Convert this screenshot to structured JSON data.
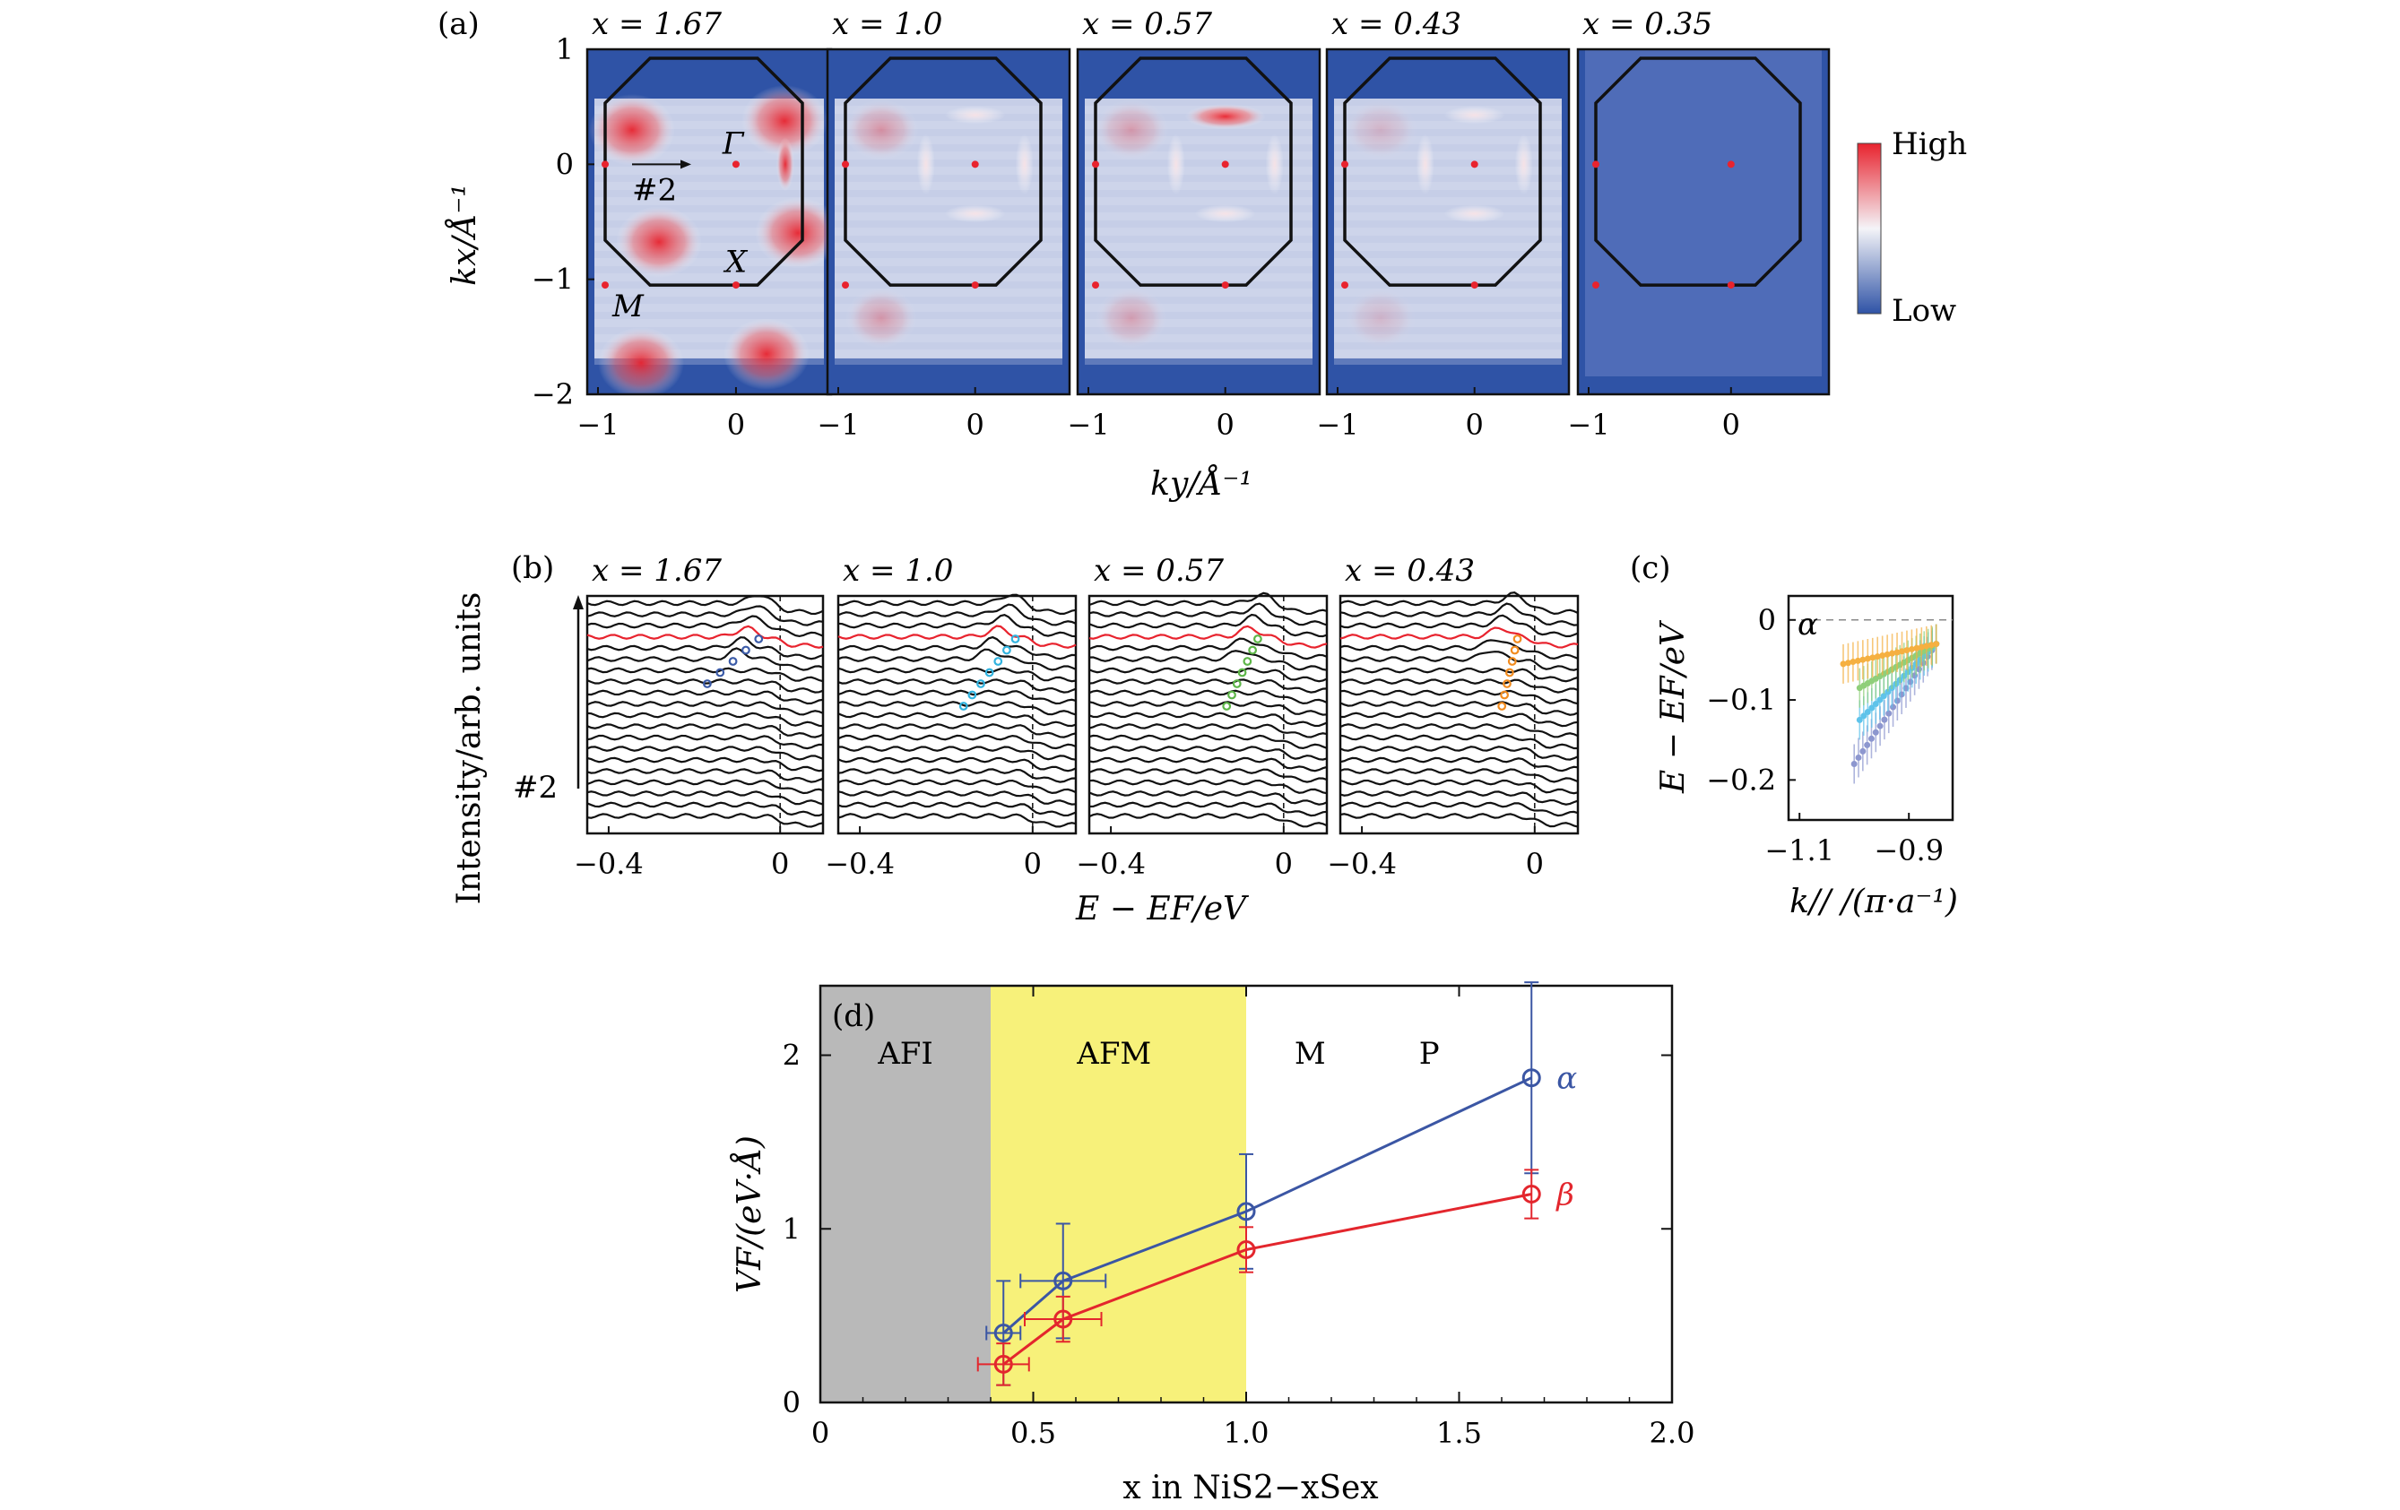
{
  "figure": {
    "panel_a_label": "(a)",
    "panel_b_label": "(b)",
    "panel_c_label": "(c)",
    "panel_d_label": "(d)"
  },
  "panel_a": {
    "map_titles": [
      "x = 1.67",
      "x = 1.0",
      "x = 0.57",
      "x = 0.43",
      "x = 0.35"
    ],
    "y_axis_label": "kx/Å⁻¹",
    "x_axis_label": "ky/Å⁻¹",
    "y_ticks": [
      "1",
      "0",
      "−1",
      "−2"
    ],
    "x_ticks": [
      "−1",
      "0"
    ],
    "point_labels": {
      "gamma": "Γ",
      "x": "X",
      "m": "M",
      "cut": "#2"
    },
    "colorbar": {
      "high": "High",
      "low": "Low",
      "high_color": "#e8232e",
      "low_color": "#2f53a6"
    }
  },
  "panel_b": {
    "titles": [
      "x = 1.67",
      "x = 1.0",
      "x = 0.57",
      "x = 0.43"
    ],
    "y_axis_label": "Intensity/arb. units",
    "x_axis_label": "E − EF/eV",
    "x_ticks": [
      "−0.4",
      "0"
    ],
    "cut_label": "#2",
    "marker_colors": [
      "#3b5ba8",
      "#31b3df",
      "#5db648",
      "#f28c1f"
    ]
  },
  "panel_c": {
    "y_axis_label": "E − EF/eV",
    "x_axis_label": "k// /(π·a⁻¹)",
    "y_ticks": [
      "0",
      "−0.1",
      "−0.2"
    ],
    "x_ticks": [
      "−1.1",
      "−0.9"
    ],
    "band_label": "α"
  },
  "chart_data": {
    "type": "scatter",
    "title": "",
    "xlabel": "x in NiS2−xSex",
    "ylabel": "VF/(eV·Å)",
    "xlim": [
      0,
      2.0
    ],
    "ylim": [
      0,
      2.4
    ],
    "x_ticks": [
      "0",
      "0.5",
      "1.0",
      "1.5",
      "2.0"
    ],
    "y_ticks": [
      "0",
      "1",
      "2"
    ],
    "regions": [
      {
        "label": "AFI",
        "from": 0,
        "to": 0.4,
        "color": "#b9b9b9"
      },
      {
        "label": "AFM",
        "from": 0.4,
        "to": 1.0,
        "color": "#f7f17a"
      },
      {
        "label": "M",
        "from": 1.0,
        "to": 2.0,
        "color": "#ffffff"
      },
      {
        "label": "P",
        "from": 1.0,
        "to": 2.0,
        "color": "#ffffff"
      }
    ],
    "series": [
      {
        "name": "α",
        "color": "#3b56a4",
        "x": [
          0.43,
          0.57,
          1.0,
          1.67
        ],
        "y": [
          0.4,
          0.7,
          1.1,
          1.87
        ],
        "yerr": [
          0.3,
          0.33,
          0.33,
          0.55
        ],
        "xerr": [
          0.04,
          0.1,
          0.0,
          0.0
        ]
      },
      {
        "name": "β",
        "color": "#e3262d",
        "x": [
          0.43,
          0.57,
          1.0,
          1.67
        ],
        "y": [
          0.22,
          0.48,
          0.88,
          1.2
        ],
        "yerr": [
          0.12,
          0.13,
          0.13,
          0.14
        ],
        "xerr": [
          0.06,
          0.09,
          0.0,
          0.0
        ]
      }
    ]
  }
}
